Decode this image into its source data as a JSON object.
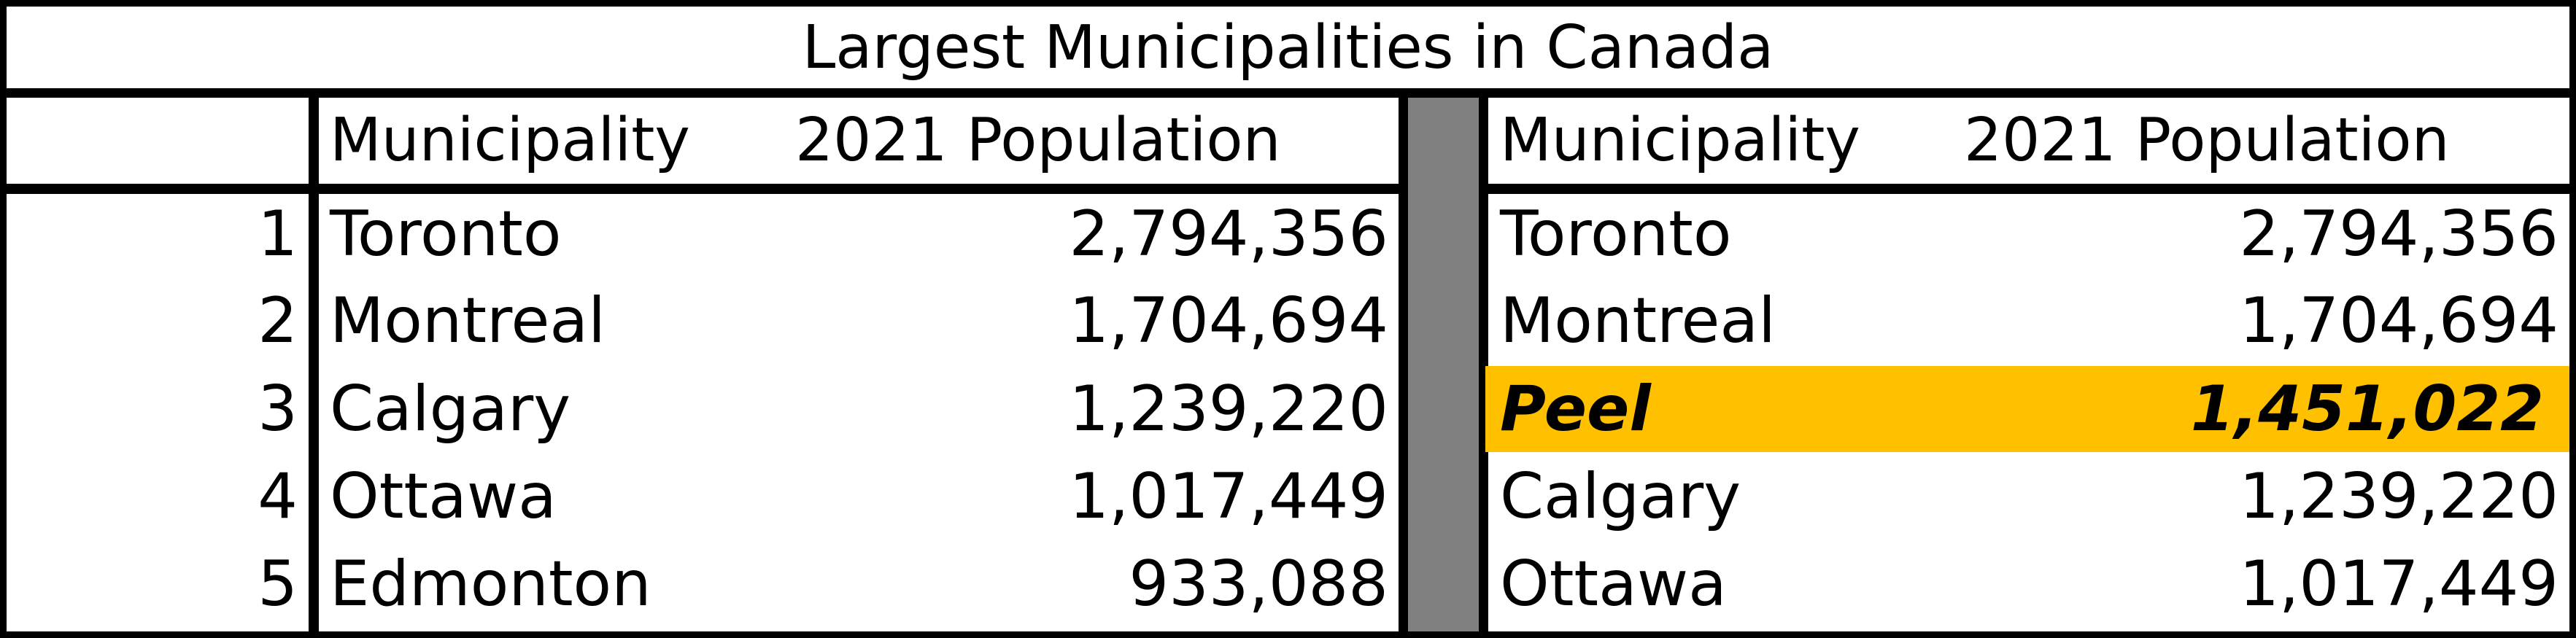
{
  "title": "Largest Municipalities in Canada",
  "headers": {
    "municipality": "Municipality",
    "population": "2021 Population"
  },
  "left_table": {
    "rows": [
      {
        "rank": "1",
        "name": "Toronto",
        "population": "2,794,356"
      },
      {
        "rank": "2",
        "name": "Montreal",
        "population": "1,704,694"
      },
      {
        "rank": "3",
        "name": "Calgary",
        "population": "1,239,220"
      },
      {
        "rank": "4",
        "name": "Ottawa",
        "population": "1,017,449"
      },
      {
        "rank": "5",
        "name": "Edmonton",
        "population": "933,088"
      }
    ]
  },
  "right_table": {
    "rows": [
      {
        "name": "Toronto",
        "population": "2,794,356",
        "highlight": false
      },
      {
        "name": "Montreal",
        "population": "1,704,694",
        "highlight": false
      },
      {
        "name": "Peel",
        "population": "1,451,022",
        "highlight": true
      },
      {
        "name": "Calgary",
        "population": "1,239,220",
        "highlight": false
      },
      {
        "name": "Ottawa",
        "population": "1,017,449",
        "highlight": false
      }
    ]
  },
  "colors": {
    "highlight": "#FFC000",
    "separator": "#808080",
    "border": "#000000"
  }
}
